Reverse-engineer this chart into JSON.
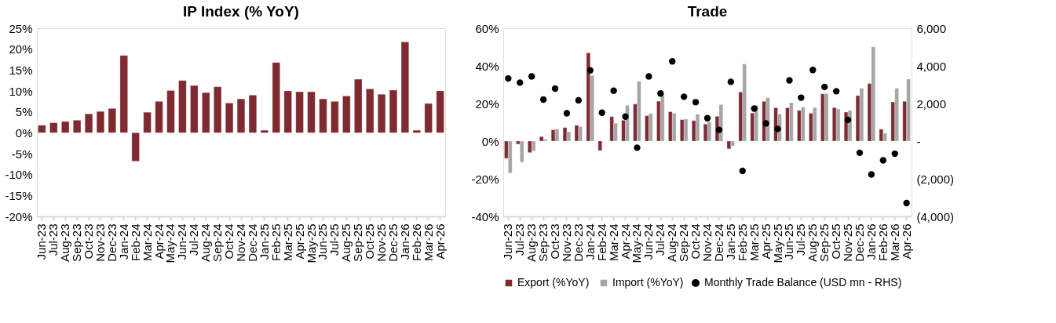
{
  "chart_data": [
    {
      "type": "bar",
      "title": "IP Index (% YoY)",
      "categories": [
        "Jun-23",
        "Jul-23",
        "Aug-23",
        "Sep-23",
        "Oct-23",
        "Nov-23",
        "Dec-23",
        "Jan-24",
        "Feb-24",
        "Mar-24",
        "Apr-24",
        "May-24",
        "Jun-24",
        "Jul-24",
        "Aug-24",
        "Sep-24",
        "Oct-24",
        "Nov-24",
        "Dec-24",
        "Jan-25",
        "Feb-25",
        "Mar-25",
        "Apr-25",
        "May-25",
        "Jun-25",
        "Jul-25",
        "Aug-25",
        "Sep-25",
        "Oct-25",
        "Nov-25",
        "Dec-25",
        "Jan-26",
        "Feb-26",
        "Mar-26",
        "Apr-26"
      ],
      "series": [
        {
          "color": "#7f2a30",
          "values": [
            1.8,
            2.4,
            2.7,
            3.0,
            4.5,
            5.1,
            5.8,
            18.5,
            -6.8,
            4.9,
            7.5,
            10.1,
            12.5,
            11.3,
            9.6,
            11.0,
            7.1,
            8.1,
            9.0,
            0.6,
            16.8,
            10.0,
            9.8,
            9.8,
            8.1,
            7.5,
            8.8,
            12.8,
            10.5,
            9.2,
            10.2,
            21.7,
            0.6,
            7.0,
            10.0
          ]
        }
      ],
      "ylim": [
        -20,
        25
      ],
      "yticks": [
        {
          "value": -20,
          "label": "-20%"
        },
        {
          "value": -15,
          "label": "-15%"
        },
        {
          "value": -10,
          "label": "-10%"
        },
        {
          "value": -5,
          "label": "-5%"
        },
        {
          "value": 0,
          "label": "0%"
        },
        {
          "value": 5,
          "label": "5%"
        },
        {
          "value": 10,
          "label": "10%"
        },
        {
          "value": 15,
          "label": "15%"
        },
        {
          "value": 20,
          "label": "20%"
        },
        {
          "value": 25,
          "label": "25%"
        }
      ],
      "grid": false,
      "legend": false
    },
    {
      "type": "bar",
      "title": "Trade",
      "categories": [
        "Jun-23",
        "Jul-23",
        "Aug-23",
        "Sep-23",
        "Oct-23",
        "Nov-23",
        "Dec-23",
        "Jan-24",
        "Feb-24",
        "Mar-24",
        "Apr-24",
        "May-24",
        "Jun-24",
        "Jul-24",
        "Aug-24",
        "Sep-24",
        "Oct-24",
        "Nov-24",
        "Dec-24",
        "Jan-25",
        "Feb-25",
        "Mar-25",
        "Apr-25",
        "May-25",
        "Jun-25",
        "Jul-25",
        "Aug-25",
        "Sep-25",
        "Oct-25",
        "Nov-25",
        "Dec-25",
        "Jan-26",
        "Feb-26",
        "Mar-26",
        "Apr-26"
      ],
      "series": [
        {
          "name": "Export (%YoY)",
          "color": "#7f2a30",
          "values": [
            -9.2,
            -1.6,
            -6.1,
            2.4,
            6.0,
            7.2,
            8.4,
            46.9,
            -5.0,
            13.0,
            11.1,
            19.7,
            13.5,
            21.2,
            15.6,
            11.4,
            10.9,
            9.0,
            13.2,
            -4.1,
            26.1,
            14.9,
            21.1,
            17.7,
            17.7,
            16.3,
            14.8,
            25.1,
            17.8,
            15.4,
            24.2,
            30.6,
            6.3,
            20.8,
            21.1
          ]
        },
        {
          "name": "Import (%YoY)",
          "color": "#a6a6a6",
          "values": [
            -17.0,
            -11.2,
            -5.3,
            1.0,
            6.4,
            4.9,
            7.7,
            34.8,
            null,
            9.5,
            19.0,
            31.8,
            14.7,
            24.5,
            14.8,
            11.7,
            14.3,
            10.2,
            19.4,
            -2.6,
            41.0,
            19.0,
            23.1,
            14.4,
            20.4,
            18.1,
            17.9,
            25.3,
            17.1,
            16.3,
            28.1,
            50.1,
            4.2,
            28.1,
            32.9
          ]
        },
        {
          "name": "Monthly Trade Balance (USD mn - RHS)",
          "type": "scatter",
          "axis": "y2",
          "marker": "circle",
          "color": "#000000",
          "values": [
            3330,
            3110,
            3440,
            2210,
            2790,
            1480,
            2170,
            3760,
            1510,
            2680,
            1300,
            -350,
            3440,
            2530,
            4240,
            2360,
            2070,
            1220,
            600,
            3150,
            -1580,
            1730,
            940,
            650,
            3230,
            2310,
            3780,
            2880,
            2650,
            1130,
            -620,
            -1770,
            -1020,
            -670,
            -3290
          ]
        }
      ],
      "ylim": [
        -40,
        60
      ],
      "yticks": [
        {
          "value": -40,
          "label": "-40%"
        },
        {
          "value": -20,
          "label": "-20%"
        },
        {
          "value": 0,
          "label": "0%"
        },
        {
          "value": 20,
          "label": "20%"
        },
        {
          "value": 40,
          "label": "40%"
        },
        {
          "value": 60,
          "label": "60%"
        }
      ],
      "y2lim": [
        -4000,
        6000
      ],
      "y2ticks": [
        {
          "value": -4000,
          "label": "(4,000)"
        },
        {
          "value": -2000,
          "label": "(2,000)"
        },
        {
          "value": 0,
          "label": "-"
        },
        {
          "value": 2000,
          "label": "2,000"
        },
        {
          "value": 4000,
          "label": "4,000"
        },
        {
          "value": 6000,
          "label": "6,000"
        }
      ],
      "grid": false,
      "legend": "bottom"
    }
  ]
}
